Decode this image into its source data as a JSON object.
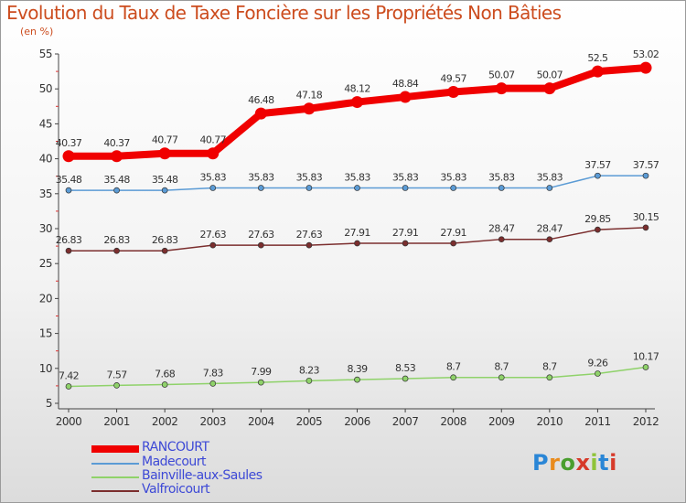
{
  "header": {
    "title": "Evolution du Taux de Taxe Foncière sur les Propriétés Non Bâties",
    "subtitle": "(en %)"
  },
  "logo": {
    "letters": [
      "P",
      "r",
      "o",
      "x",
      "i",
      "t",
      "i"
    ]
  },
  "chart_data": {
    "type": "line",
    "title": "Evolution du Taux de Taxe Foncière sur les Propriétés Non Bâties",
    "ylabel": "(en %)",
    "xlabel": "",
    "ylim": [
      5,
      55
    ],
    "yticks": [
      5,
      10,
      15,
      20,
      25,
      30,
      35,
      40,
      45,
      50,
      55
    ],
    "grid": false,
    "legend_position": "bottom-left",
    "categories": [
      "2000",
      "2001",
      "2002",
      "2003",
      "2004",
      "2005",
      "2006",
      "2007",
      "2008",
      "2009",
      "2010",
      "2011",
      "2012"
    ],
    "series": [
      {
        "name": "RANCOURT",
        "color": "#f00000",
        "values": [
          40.37,
          40.37,
          40.77,
          40.77,
          46.48,
          47.18,
          48.12,
          48.84,
          49.57,
          50.07,
          50.07,
          52.5,
          53.02
        ]
      },
      {
        "name": "Madecourt",
        "color": "#5b9bd5",
        "values": [
          35.48,
          35.48,
          35.48,
          35.83,
          35.83,
          35.83,
          35.83,
          35.83,
          35.83,
          35.83,
          35.83,
          37.57,
          37.57
        ]
      },
      {
        "name": "Bainville-aux-Saules",
        "color": "#8fd26a",
        "values": [
          7.42,
          7.57,
          7.68,
          7.83,
          7.99,
          8.23,
          8.39,
          8.53,
          8.7,
          8.7,
          8.7,
          9.26,
          10.17
        ]
      },
      {
        "name": "Valfroicourt",
        "color": "#7b2e2e",
        "values": [
          26.83,
          26.83,
          26.83,
          27.63,
          27.63,
          27.63,
          27.91,
          27.91,
          27.91,
          28.47,
          28.47,
          29.85,
          30.15
        ]
      }
    ]
  }
}
